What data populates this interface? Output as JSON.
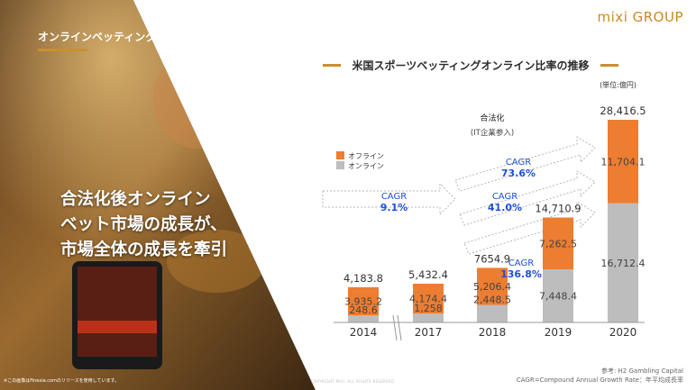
{
  "brand": {
    "logo": "mixi GROUP"
  },
  "slide": {
    "title": "オンラインベッティングの牽引",
    "headline": [
      "合法化後オンライン",
      "ベット市場の成長が、",
      "市場全体の成長を牽引"
    ],
    "photo_note": "※この画像はFinexia.comのリリースを使用しています。",
    "footer_mid": "COPYRIGHT MIXI. ALL RIGHTS RESERVED."
  },
  "chart_title": "米国スポーツベッティングオンライン比率の推移",
  "chart_data": {
    "type": "bar",
    "stacked": true,
    "unit": "(単位:億円)",
    "categories": [
      "2014",
      "2017",
      "2018",
      "2019",
      "2020"
    ],
    "series": [
      {
        "name": "オフライン",
        "color": "#ed7d31",
        "values": [
          3935.2,
          4174.4,
          5206.4,
          7262.5,
          11704.1
        ],
        "labels": [
          "3,935.2",
          "4,174.4",
          "5,206.4",
          "7,262.5",
          "11,704.1"
        ]
      },
      {
        "name": "オンライン",
        "color": "#bdbdbd",
        "values": [
          248.6,
          1258,
          2448.5,
          7448.4,
          16712.4
        ],
        "labels": [
          "248.6",
          "1,258",
          "2,448.5",
          "7,448.4",
          "16,712.4"
        ]
      }
    ],
    "totals": [
      4183.8,
      5432.4,
      7654.9,
      14710.9,
      28416.5
    ],
    "total_labels": [
      "4,183.8",
      "5,432.4",
      "7654.9",
      "14,710.9",
      "28,416.5"
    ],
    "annotation": {
      "title": "合法化",
      "subtitle": "(IT企業参入)"
    },
    "cagr": [
      {
        "label": "CAGR",
        "value": "9.1%"
      },
      {
        "label": "CAGR",
        "value": "73.6%"
      },
      {
        "label": "CAGR",
        "value": "41.0%"
      },
      {
        "label": "CAGR",
        "value": "136.8%"
      }
    ]
  },
  "source": {
    "line1": "参考: H2 Gambling Capital",
    "line2": "CAGR=Compound Annual Growth Rate：年平均成長率"
  },
  "colors": {
    "offline": "#ed7d31",
    "online": "#bdbdbd",
    "accent": "#c9902e",
    "cagr": "#1f4fd6"
  }
}
